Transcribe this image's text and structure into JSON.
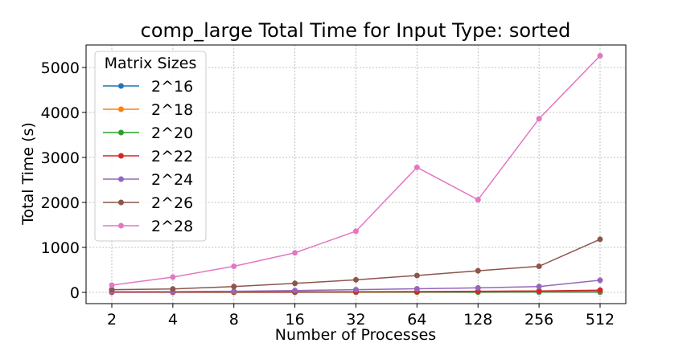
{
  "chart_data": {
    "type": "line",
    "title": "comp_large Total Time for Input Type: sorted",
    "xlabel": "Number of Processes",
    "ylabel": "Total Time (s)",
    "categories": [
      "2",
      "4",
      "8",
      "16",
      "32",
      "64",
      "128",
      "256",
      "512"
    ],
    "ylim": [
      -250,
      5500
    ],
    "yticks": [
      0,
      1000,
      2000,
      3000,
      4000,
      5000
    ],
    "grid": true,
    "legend": {
      "title": "Matrix Sizes",
      "placement": "top-left"
    },
    "series": [
      {
        "name": "2^16",
        "color": "#1f77b4",
        "values": [
          2,
          2,
          2,
          2,
          3,
          3,
          3,
          4,
          5
        ]
      },
      {
        "name": "2^18",
        "color": "#ff7f0e",
        "values": [
          3,
          3,
          3,
          4,
          5,
          6,
          8,
          10,
          14
        ]
      },
      {
        "name": "2^20",
        "color": "#2ca02c",
        "values": [
          4,
          4,
          5,
          6,
          8,
          10,
          12,
          15,
          20
        ]
      },
      {
        "name": "2^22",
        "color": "#d62728",
        "values": [
          5,
          6,
          8,
          10,
          14,
          18,
          24,
          32,
          50
        ]
      },
      {
        "name": "2^24",
        "color": "#9467bd",
        "values": [
          15,
          18,
          25,
          40,
          60,
          80,
          100,
          130,
          270
        ]
      },
      {
        "name": "2^26",
        "color": "#8c564b",
        "values": [
          60,
          75,
          130,
          200,
          280,
          375,
          480,
          580,
          1180
        ]
      },
      {
        "name": "2^28",
        "color": "#e377c2",
        "values": [
          160,
          340,
          580,
          880,
          1360,
          2780,
          2060,
          3860,
          5260
        ]
      }
    ]
  }
}
